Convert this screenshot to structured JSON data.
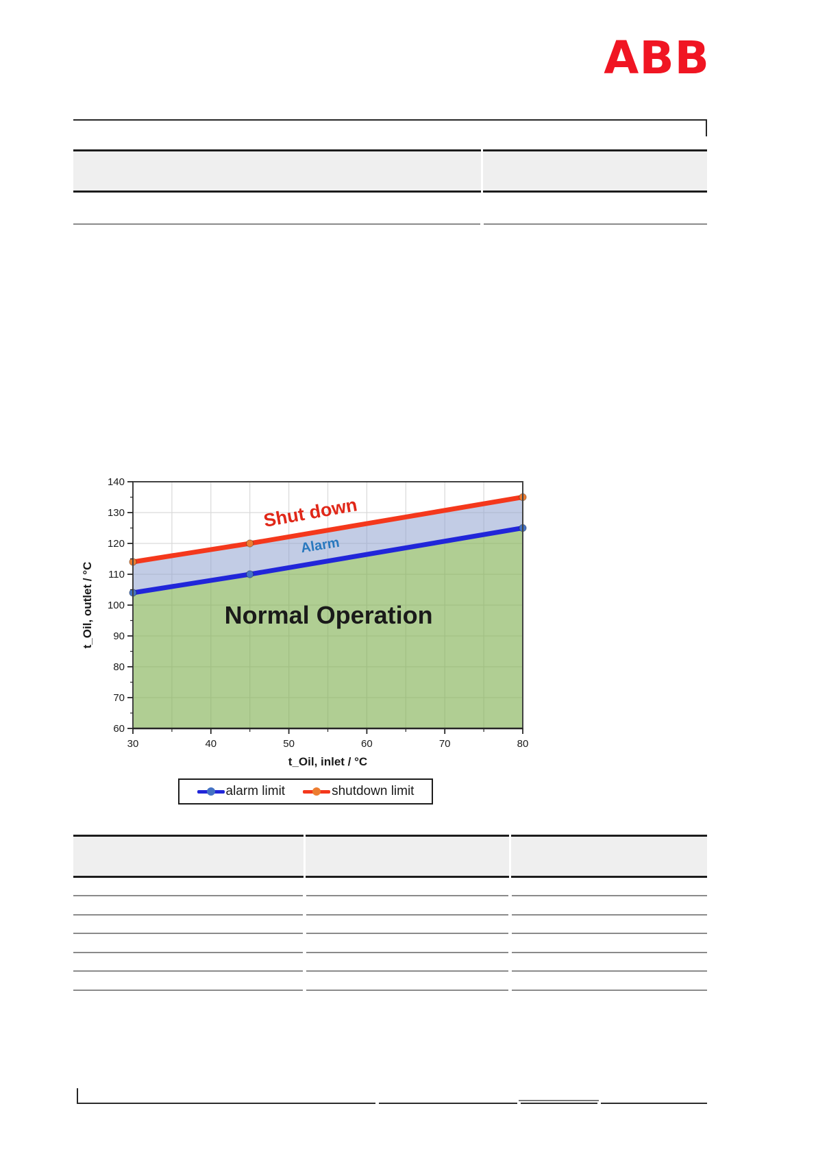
{
  "page": {
    "logo_text": "ABB"
  },
  "chart_data": {
    "type": "line",
    "title": "",
    "xlabel": "t_Oil, inlet / °C",
    "ylabel": "t_Oil, outlet / °C",
    "xlim": [
      30,
      80
    ],
    "ylim": [
      60,
      140
    ],
    "x_major_ticks": [
      30,
      40,
      50,
      60,
      70,
      80
    ],
    "y_major_ticks": [
      60,
      70,
      80,
      90,
      100,
      110,
      120,
      130,
      140
    ],
    "minor_tick_step": 5,
    "grid": {
      "vertical_step": 5,
      "horizontal_step": 10,
      "color": "#d9d9d9"
    },
    "series": [
      {
        "name": "alarm limit",
        "x": [
          30,
          45,
          80
        ],
        "y": [
          104,
          110,
          125
        ],
        "color": "#2126d9",
        "marker_color": "#4472c4"
      },
      {
        "name": "shutdown limit",
        "x": [
          30,
          45,
          80
        ],
        "y": [
          114,
          120,
          135
        ],
        "color": "#f4381c",
        "marker_color": "#ed7d31"
      }
    ],
    "zones": [
      {
        "name": "alarm zone",
        "fill": "rgba(143,163,207,0.55)",
        "border": "#1f3864"
      },
      {
        "name": "normal zone",
        "fill": "rgba(127,176,80,0.62)",
        "border": ""
      }
    ],
    "annotations": [
      {
        "text": "Shut down",
        "color": "#e02718",
        "x": 52.9,
        "y": 128,
        "rotation": -10,
        "size": 27,
        "weight": "bold"
      },
      {
        "text": "Alarm",
        "color": "#2878be",
        "x": 54.1,
        "y": 118,
        "rotation": -9,
        "size": 20,
        "weight": "bold"
      },
      {
        "text": "Normal Operation",
        "color": "#1a1a1a",
        "x": 55.1,
        "y": 94,
        "rotation": 0,
        "size": 36,
        "weight": "600"
      }
    ],
    "legend": {
      "position": "bottom",
      "items": [
        {
          "label": "alarm limit",
          "line_color": "#2126d9",
          "marker_color": "#4472c4"
        },
        {
          "label": "shutdown limit",
          "line_color": "#f4381c",
          "marker_color": "#ed7d31"
        }
      ]
    }
  }
}
